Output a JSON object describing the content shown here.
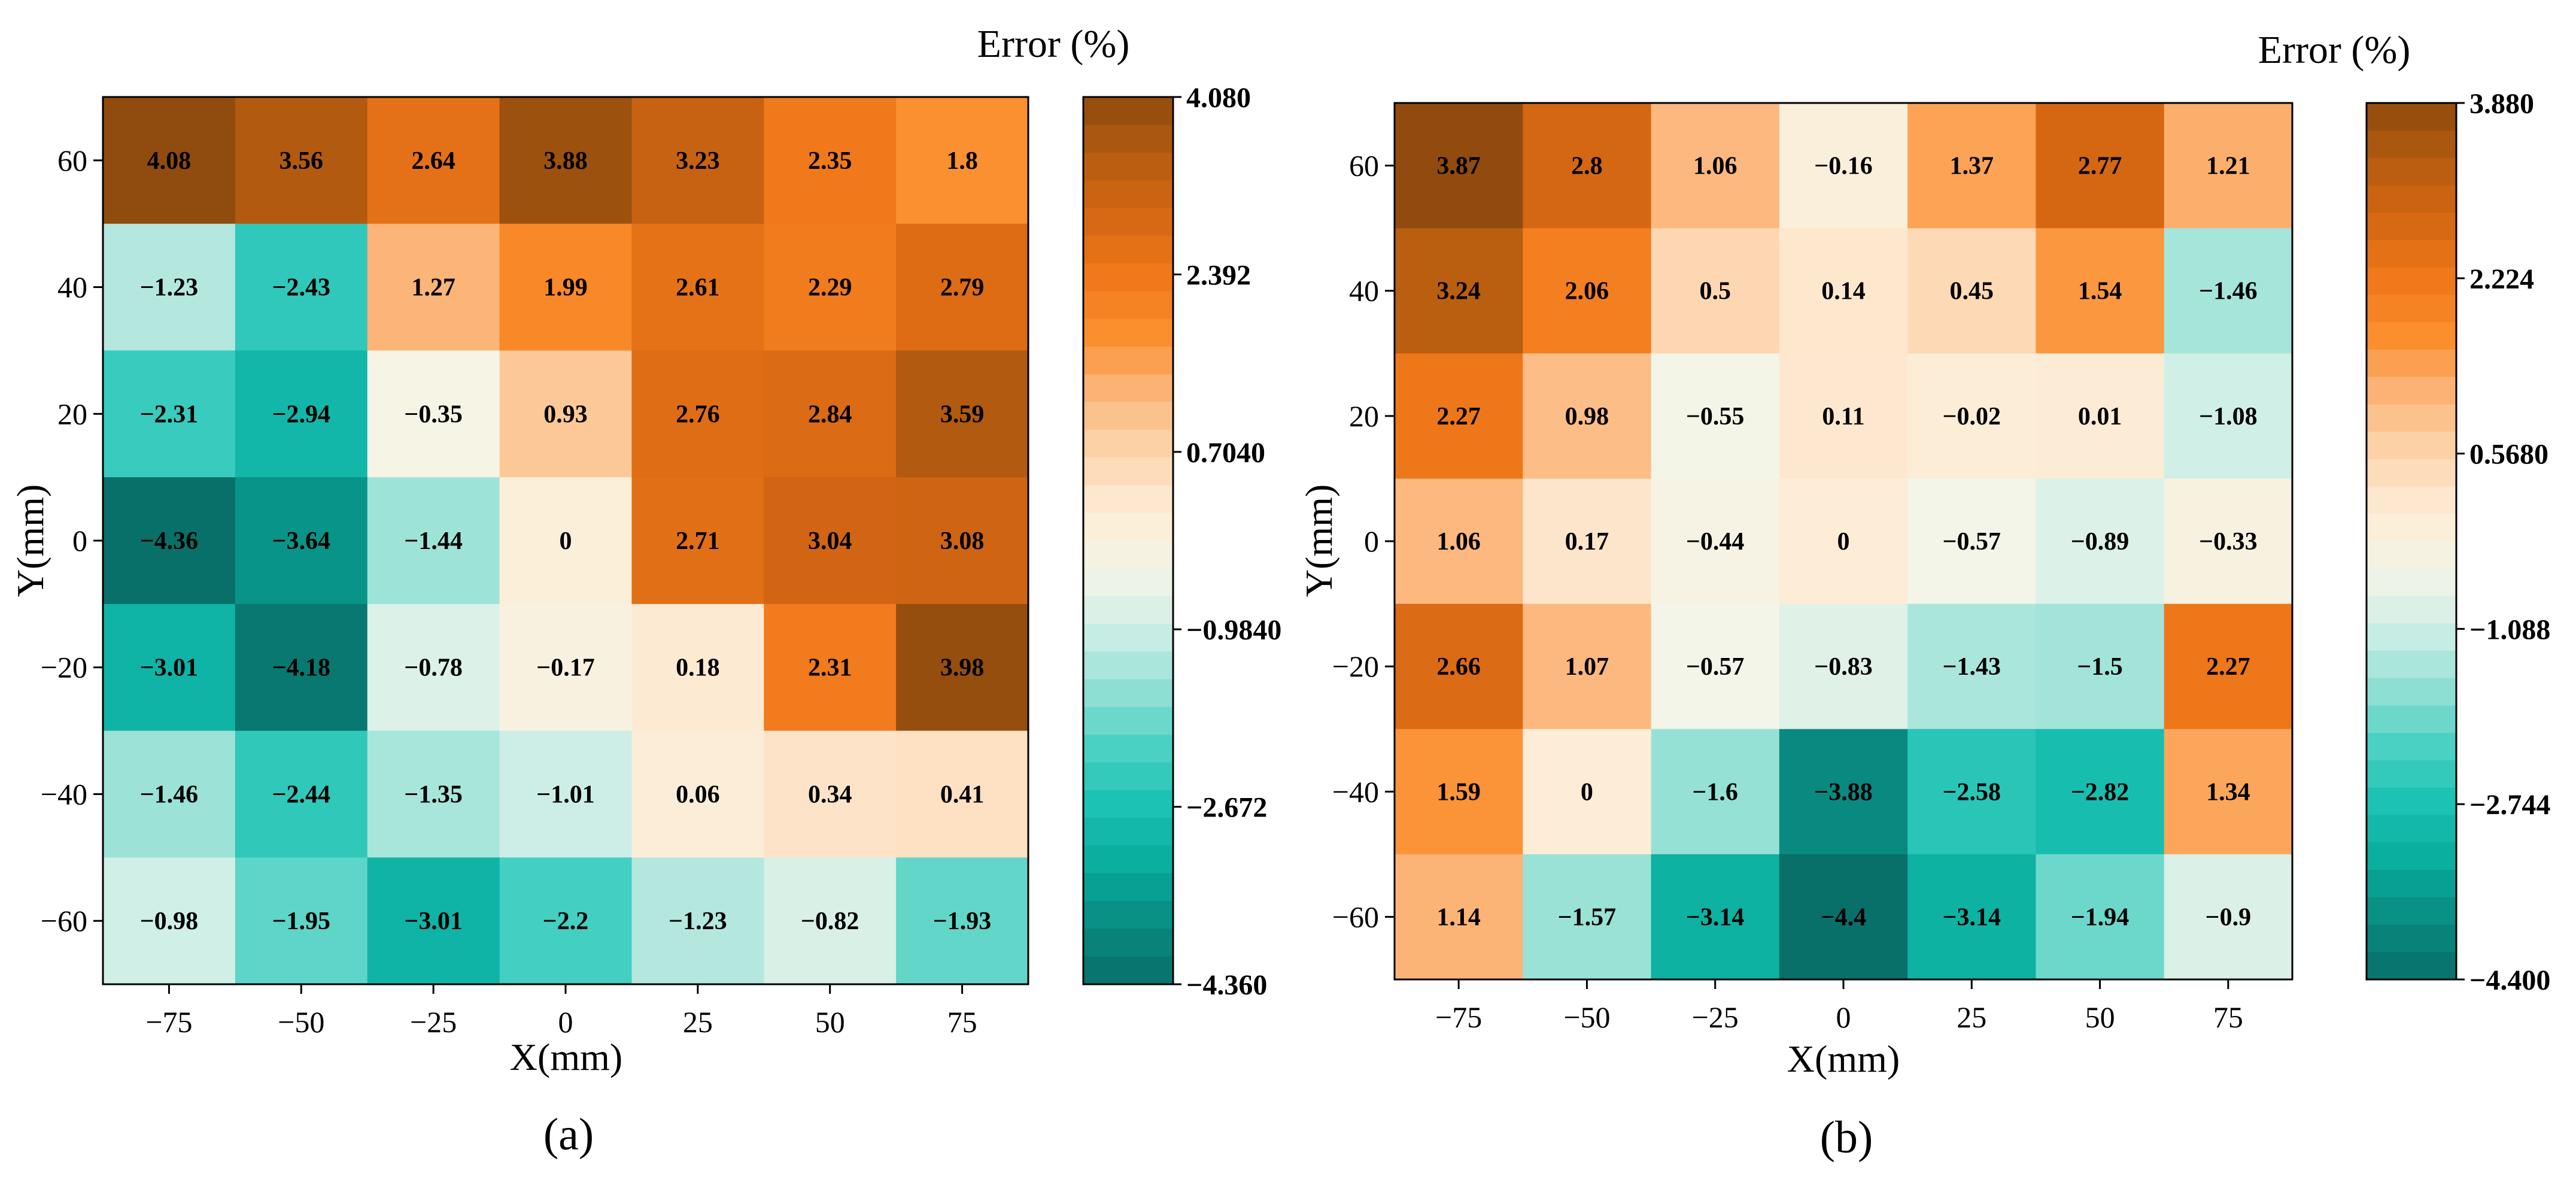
{
  "chart_data": [
    {
      "type": "heatmap",
      "panel_label": "(a)",
      "title": "",
      "xlabel": "X(mm)",
      "ylabel": "Y(mm)",
      "x_ticks": [
        "−75",
        "−50",
        "−25",
        "0",
        "25",
        "50",
        "75"
      ],
      "y_ticks": [
        "60",
        "40",
        "20",
        "0",
        "−20",
        "−40",
        "−60"
      ],
      "values": [
        [
          4.08,
          3.56,
          2.64,
          3.88,
          3.23,
          2.35,
          1.8
        ],
        [
          -1.23,
          -2.43,
          1.27,
          1.99,
          2.61,
          2.29,
          2.79
        ],
        [
          -2.31,
          -2.94,
          -0.35,
          0.93,
          2.76,
          2.84,
          3.59
        ],
        [
          -4.36,
          -3.64,
          -1.44,
          0,
          2.71,
          3.04,
          3.08
        ],
        [
          -3.01,
          -4.18,
          -0.78,
          -0.17,
          0.18,
          2.31,
          3.98
        ],
        [
          -1.46,
          -2.44,
          -1.35,
          -1.01,
          0.06,
          0.34,
          0.41
        ],
        [
          -0.98,
          -1.95,
          -3.01,
          -2.2,
          -1.23,
          -0.82,
          -1.93
        ]
      ],
      "cell_labels": [
        [
          "4.08",
          "3.56",
          "2.64",
          "3.88",
          "3.23",
          "2.35",
          "1.8"
        ],
        [
          "−1.23",
          "−2.43",
          "1.27",
          "1.99",
          "2.61",
          "2.29",
          "2.79"
        ],
        [
          "−2.31",
          "−2.94",
          "−0.35",
          "0.93",
          "2.76",
          "2.84",
          "3.59"
        ],
        [
          "−4.36",
          "−3.64",
          "−1.44",
          "0",
          "2.71",
          "3.04",
          "3.08"
        ],
        [
          "−3.01",
          "−4.18",
          "−0.78",
          "−0.17",
          "0.18",
          "2.31",
          "3.98"
        ],
        [
          "−1.46",
          "−2.44",
          "−1.35",
          "−1.01",
          "0.06",
          "0.34",
          "0.41"
        ],
        [
          "−0.98",
          "−1.95",
          "−3.01",
          "−2.2",
          "−1.23",
          "−0.82",
          "−1.93"
        ]
      ],
      "colorbar": {
        "title": "Error  (%)",
        "min": -4.36,
        "max": 4.08,
        "ticks": [
          4.08,
          2.392,
          0.704,
          -0.984,
          -2.672,
          -4.36
        ],
        "tick_labels": [
          "4.080",
          "2.392",
          "0.7040",
          "−0.9840",
          "−2.672",
          "−4.360"
        ]
      }
    },
    {
      "type": "heatmap",
      "panel_label": "(b)",
      "title": "",
      "xlabel": "X(mm)",
      "ylabel": "Y(mm)",
      "x_ticks": [
        "−75",
        "−50",
        "−25",
        "0",
        "25",
        "50",
        "75"
      ],
      "y_ticks": [
        "60",
        "40",
        "20",
        "0",
        "−20",
        "−40",
        "−60"
      ],
      "values": [
        [
          3.87,
          2.8,
          1.06,
          -0.16,
          1.37,
          2.77,
          1.21
        ],
        [
          3.24,
          2.06,
          0.5,
          0.14,
          0.45,
          1.54,
          -1.46
        ],
        [
          2.27,
          0.98,
          -0.55,
          0.11,
          -0.02,
          0.01,
          -1.08
        ],
        [
          1.06,
          0.17,
          -0.44,
          0,
          -0.57,
          -0.89,
          -0.33
        ],
        [
          2.66,
          1.07,
          -0.57,
          -0.83,
          -1.43,
          -1.5,
          2.27
        ],
        [
          1.59,
          0,
          -1.6,
          -3.88,
          -2.58,
          -2.82,
          1.34
        ],
        [
          1.14,
          -1.57,
          -3.14,
          -4.4,
          -3.14,
          -1.94,
          -0.9
        ]
      ],
      "cell_labels": [
        [
          "3.87",
          "2.8",
          "1.06",
          "−0.16",
          "1.37",
          "2.77",
          "1.21"
        ],
        [
          "3.24",
          "2.06",
          "0.5",
          "0.14",
          "0.45",
          "1.54",
          "−1.46"
        ],
        [
          "2.27",
          "0.98",
          "−0.55",
          "0.11",
          "−0.02",
          "0.01",
          "−1.08"
        ],
        [
          "1.06",
          "0.17",
          "−0.44",
          "0",
          "−0.57",
          "−0.89",
          "−0.33"
        ],
        [
          "2.66",
          "1.07",
          "−0.57",
          "−0.83",
          "−1.43",
          "−1.5",
          "2.27"
        ],
        [
          "1.59",
          "0",
          "−1.6",
          "−3.88",
          "−2.58",
          "−2.82",
          "1.34"
        ],
        [
          "1.14",
          "−1.57",
          "−3.14",
          "−4.4",
          "−3.14",
          "−1.94",
          "−0.9"
        ]
      ],
      "colorbar": {
        "title": "Error  (%)",
        "min": -4.4,
        "max": 3.88,
        "ticks": [
          3.88,
          2.224,
          0.568,
          -1.088,
          -2.744,
          -4.4
        ],
        "tick_labels": [
          "3.880",
          "2.224",
          "0.5680",
          "−1.088",
          "−2.744",
          "−4.400"
        ]
      }
    }
  ],
  "colormap": {
    "name": "teal-to-brown diverging",
    "stops": [
      "#006b63",
      "#01877d",
      "#00aa9a",
      "#13bfb0",
      "#45d0c2",
      "#8fdfd3",
      "#cdeee6",
      "#f4f5e6",
      "#fdebd4",
      "#fdd3ab",
      "#fcb375",
      "#fb8a26",
      "#ef7413",
      "#d4620b",
      "#b35708",
      "#8c4506"
    ],
    "cell_alpha": 0.97
  }
}
